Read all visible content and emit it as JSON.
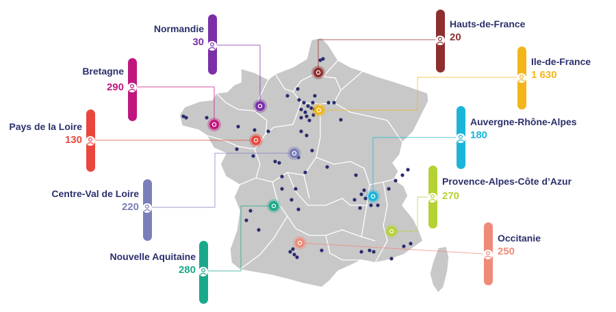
{
  "map": {
    "regions": [
      {
        "id": "normandie",
        "name": "Normandie",
        "value": "30",
        "color": "#7b2fa8"
      },
      {
        "id": "bretagne",
        "name": "Bretagne",
        "value": "290",
        "color": "#c0177f"
      },
      {
        "id": "pays-de-la-loire",
        "name": "Pays de la Loire",
        "value": "130",
        "color": "#e8473e"
      },
      {
        "id": "centre-val-de-loire",
        "name": "Centre-Val de Loire",
        "value": "220",
        "color": "#7a7fb8"
      },
      {
        "id": "nouvelle-aquitaine",
        "name": "Nouvelle Aquitaine",
        "value": "280",
        "color": "#1aa88a"
      },
      {
        "id": "hauts-de-france",
        "name": "Hauts-de-France",
        "value": "20",
        "color": "#8e2f2f"
      },
      {
        "id": "ile-de-france",
        "name": "Ile-de-France",
        "value": "1 630",
        "color": "#f2b51a"
      },
      {
        "id": "auvergne-rhone-alpes",
        "name": "Auvergne-Rhône-Alpes",
        "value": "180",
        "color": "#1ab5d9"
      },
      {
        "id": "provence-alpes-cote-d-azur",
        "name": "Provence-Alpes-Côte d’Azur",
        "value": "270",
        "color": "#b5d234"
      },
      {
        "id": "occitanie",
        "name": "Occitanie",
        "value": "250",
        "color": "#f08a78"
      }
    ],
    "colors": {
      "land": "#c8c8c8",
      "border": "#ffffff",
      "dot": "#2a2c6e",
      "label_text": "#2b2f6b"
    },
    "icon": "person-icon"
  }
}
